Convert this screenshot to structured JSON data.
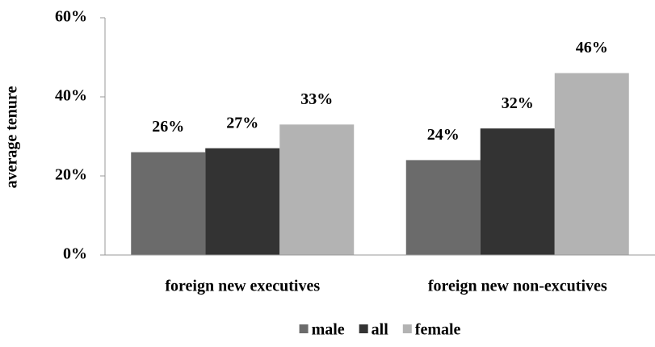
{
  "chart_data": {
    "type": "bar",
    "y_label": "average tenure",
    "categories": [
      "foreign new executives",
      "foreign new non-excutives"
    ],
    "series": [
      {
        "name": "male",
        "color": "#6b6b6b",
        "values": [
          26,
          24
        ],
        "value_labels": [
          "26%",
          "24%"
        ]
      },
      {
        "name": "all",
        "color": "#333333",
        "values": [
          27,
          32
        ],
        "value_labels": [
          "27%",
          "32%"
        ]
      },
      {
        "name": "female",
        "color": "#b3b3b3",
        "values": [
          33,
          46
        ],
        "value_labels": [
          "33%",
          "46%"
        ]
      }
    ],
    "ylim": [
      0,
      60
    ],
    "yticks": [
      {
        "value": 0,
        "label": "0%"
      },
      {
        "value": 20,
        "label": "20%"
      },
      {
        "value": 40,
        "label": "40%"
      },
      {
        "value": 60,
        "label": "60%"
      }
    ],
    "legend": "bottom"
  }
}
